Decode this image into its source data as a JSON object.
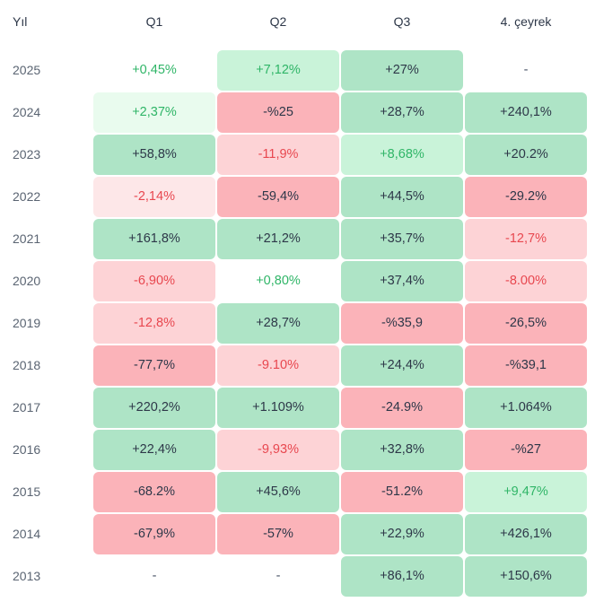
{
  "chart_data": {
    "type": "table",
    "columns": [
      "Yıl",
      "Q1",
      "Q2",
      "Q3",
      "4. çeyrek"
    ],
    "rows": [
      {
        "year": "2025",
        "cells": [
          {
            "text": "+0,45%",
            "style": "np"
          },
          {
            "text": "+7,12%",
            "style": "g2"
          },
          {
            "text": "+27%",
            "style": "g1"
          },
          {
            "text": "-",
            "style": "e"
          }
        ]
      },
      {
        "year": "2024",
        "cells": [
          {
            "text": "+2,37%",
            "style": "g3"
          },
          {
            "text": "-%25",
            "style": "r1"
          },
          {
            "text": "+28,7%",
            "style": "g1"
          },
          {
            "text": "+240,1%",
            "style": "g1"
          }
        ]
      },
      {
        "year": "2023",
        "cells": [
          {
            "text": "+58,8%",
            "style": "g1"
          },
          {
            "text": "-11,9%",
            "style": "r2"
          },
          {
            "text": "+8,68%",
            "style": "g2"
          },
          {
            "text": "+20.2%",
            "style": "g1"
          }
        ]
      },
      {
        "year": "2022",
        "cells": [
          {
            "text": "-2,14%",
            "style": "r3"
          },
          {
            "text": "-59,4%",
            "style": "r1"
          },
          {
            "text": "+44,5%",
            "style": "g1"
          },
          {
            "text": "-29.2%",
            "style": "r1"
          }
        ]
      },
      {
        "year": "2021",
        "cells": [
          {
            "text": "+161,8%",
            "style": "g1"
          },
          {
            "text": "+21,2%",
            "style": "g1"
          },
          {
            "text": "+35,7%",
            "style": "g1"
          },
          {
            "text": "-12,7%",
            "style": "r2"
          }
        ]
      },
      {
        "year": "2020",
        "cells": [
          {
            "text": "-6,90%",
            "style": "r2"
          },
          {
            "text": "+0,80%",
            "style": "np"
          },
          {
            "text": "+37,4%",
            "style": "g1"
          },
          {
            "text": "-8.00%",
            "style": "r2"
          }
        ]
      },
      {
        "year": "2019",
        "cells": [
          {
            "text": "-12,8%",
            "style": "r2"
          },
          {
            "text": "+28,7%",
            "style": "g1"
          },
          {
            "text": "-%35,9",
            "style": "r1"
          },
          {
            "text": "-26,5%",
            "style": "r1"
          }
        ]
      },
      {
        "year": "2018",
        "cells": [
          {
            "text": "-77,7%",
            "style": "r1"
          },
          {
            "text": "-9.10%",
            "style": "r2"
          },
          {
            "text": "+24,4%",
            "style": "g1"
          },
          {
            "text": "-%39,1",
            "style": "r1"
          }
        ]
      },
      {
        "year": "2017",
        "cells": [
          {
            "text": "+220,2%",
            "style": "g1"
          },
          {
            "text": "+1.109%",
            "style": "g1"
          },
          {
            "text": "-24.9%",
            "style": "r1"
          },
          {
            "text": "+1.064%",
            "style": "g1"
          }
        ]
      },
      {
        "year": "2016",
        "cells": [
          {
            "text": "+22,4%",
            "style": "g1"
          },
          {
            "text": "-9,93%",
            "style": "r2"
          },
          {
            "text": "+32,8%",
            "style": "g1"
          },
          {
            "text": "-%27",
            "style": "r1"
          }
        ]
      },
      {
        "year": "2015",
        "cells": [
          {
            "text": "-68.2%",
            "style": "r1"
          },
          {
            "text": "+45,6%",
            "style": "g1"
          },
          {
            "text": "-51.2%",
            "style": "r1"
          },
          {
            "text": "+9,47%",
            "style": "g2"
          }
        ]
      },
      {
        "year": "2014",
        "cells": [
          {
            "text": "-67,9%",
            "style": "r1"
          },
          {
            "text": "-57%",
            "style": "r1"
          },
          {
            "text": "+22,9%",
            "style": "g1"
          },
          {
            "text": "+426,1%",
            "style": "g1"
          }
        ]
      },
      {
        "year": "2013",
        "cells": [
          {
            "text": "-",
            "style": "e"
          },
          {
            "text": "-",
            "style": "e"
          },
          {
            "text": "+86,1%",
            "style": "g1"
          },
          {
            "text": "+150,6%",
            "style": "g1"
          }
        ]
      }
    ]
  },
  "colors": {
    "strong_green": "#aee4c6",
    "mid_green": "#c9f3d9",
    "light_green": "#e9fbee",
    "strong_red": "#fbb3b9",
    "mid_red": "#fdd3d6",
    "light_red": "#fde7e8",
    "positive_text": "#2fb567",
    "negative_text": "#e8474f"
  }
}
